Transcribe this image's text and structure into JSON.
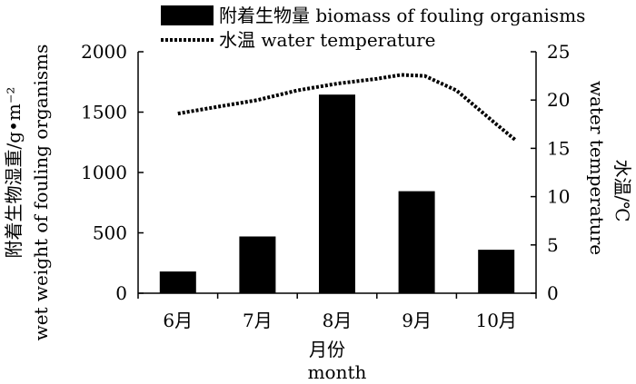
{
  "chart_data": {
    "type": "bar+line",
    "categories": [
      "6月",
      "7月",
      "8月",
      "9月",
      "10月"
    ],
    "series": [
      {
        "name": "附着生物量 biomass of fouling organisms",
        "type": "bar",
        "axis": "left",
        "color": "#000000",
        "values": [
          180,
          470,
          1645,
          845,
          360
        ]
      },
      {
        "name": "水温 water temperature",
        "type": "line",
        "axis": "right",
        "style": "dotted",
        "color": "#000000",
        "points": [
          {
            "x": 1.0,
            "y": 18.6
          },
          {
            "x": 1.5,
            "y": 19.3
          },
          {
            "x": 2.0,
            "y": 20.0
          },
          {
            "x": 2.5,
            "y": 21.0
          },
          {
            "x": 3.0,
            "y": 21.7
          },
          {
            "x": 3.5,
            "y": 22.2
          },
          {
            "x": 3.8,
            "y": 22.6
          },
          {
            "x": 4.1,
            "y": 22.5
          },
          {
            "x": 4.5,
            "y": 21.0
          },
          {
            "x": 5.0,
            "y": 17.5
          },
          {
            "x": 5.25,
            "y": 15.8
          }
        ]
      }
    ],
    "y_left": {
      "label_lines": [
        "附着生物湿重/g•m⁻²",
        "wet weight of fouling organisms"
      ],
      "ticks": [
        0,
        500,
        1000,
        1500,
        2000
      ],
      "ylim": [
        0,
        2000
      ]
    },
    "y_right": {
      "label_lines": [
        "水温/℃",
        "water temperature"
      ],
      "ticks": [
        0,
        5,
        10,
        15,
        20,
        25
      ],
      "ylim": [
        0,
        25
      ]
    },
    "x_axis": {
      "label_lines": [
        "月份",
        "month"
      ]
    },
    "legend_position": "top"
  }
}
